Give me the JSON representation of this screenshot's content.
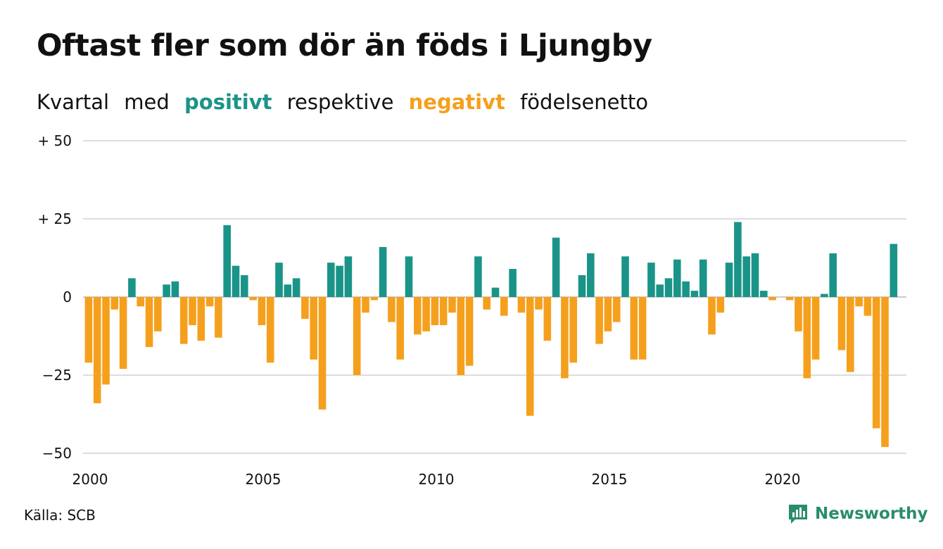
{
  "title": "Oftast fler som dör än föds i Ljungby",
  "subtitle": {
    "part1": "Kvartal",
    "part2": "med",
    "positive": "positivt",
    "part3": "respektive",
    "negative": "negativt",
    "part4": "födelsenetto"
  },
  "source": "Källa: SCB",
  "brand": {
    "name": "Newsworthy",
    "icon": "newsworthy-logo-icon"
  },
  "colors": {
    "positive": "#1a9488",
    "negative": "#f5a01d",
    "grid": "#dddddd",
    "text": "#111111"
  },
  "chart_data": {
    "type": "bar",
    "x_start": 2000,
    "x_step": 0.25,
    "values": [
      -21,
      -34,
      -28,
      -4,
      -23,
      6,
      -3,
      -16,
      -11,
      4,
      5,
      -15,
      -9,
      -14,
      -3,
      -13,
      23,
      10,
      7,
      -1,
      -9,
      -21,
      11,
      4,
      6,
      -7,
      -20,
      -36,
      11,
      10,
      13,
      -25,
      -5,
      -1,
      16,
      -8,
      -20,
      13,
      -12,
      -11,
      -9,
      -9,
      -5,
      -25,
      -22,
      13,
      -4,
      3,
      -6,
      9,
      -5,
      -38,
      -4,
      -14,
      19,
      -26,
      -21,
      7,
      14,
      -15,
      -11,
      -8,
      13,
      -20,
      -20,
      11,
      4,
      6,
      12,
      5,
      2,
      12,
      -12,
      -5,
      11,
      24,
      13,
      14,
      2,
      -1,
      0,
      -1,
      -11,
      -26,
      -20,
      1,
      14,
      -17,
      -24,
      -3,
      -6,
      -42,
      -48,
      17
    ],
    "ylim": [
      -50,
      50
    ],
    "yticks": [
      {
        "value": 50,
        "label": "+ 50"
      },
      {
        "value": 25,
        "label": "+ 25"
      },
      {
        "value": 0,
        "label": "0"
      },
      {
        "value": -25,
        "label": "−25"
      },
      {
        "value": -50,
        "label": "−50"
      }
    ],
    "xticks": [
      {
        "value": 2000,
        "label": "2000"
      },
      {
        "value": 2005,
        "label": "2005"
      },
      {
        "value": 2010,
        "label": "2010"
      },
      {
        "value": 2015,
        "label": "2015"
      },
      {
        "value": 2020,
        "label": "2020"
      }
    ],
    "grid": true,
    "legend": "subtitle-colored-words"
  }
}
